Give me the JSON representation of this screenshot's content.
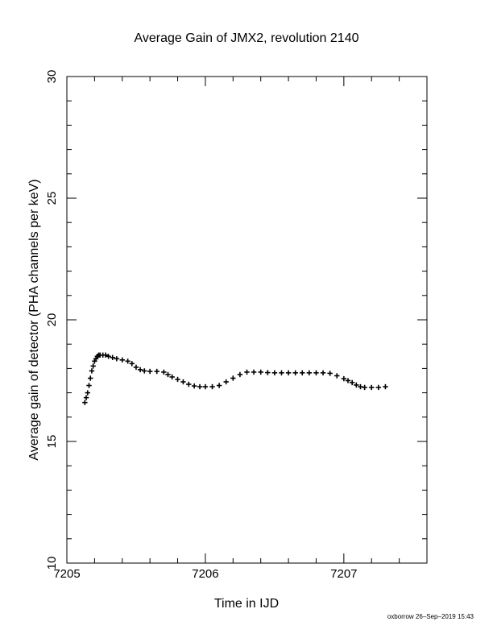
{
  "chart_data": {
    "type": "scatter",
    "title": "Average Gain of JMX2, revolution 2140",
    "xlabel": "Time in IJD",
    "ylabel": "Average gain of detector (PHA channels per keV)",
    "xlim": [
      7205,
      7207.6
    ],
    "ylim": [
      10,
      30
    ],
    "x_ticks": [
      7205,
      7206,
      7207
    ],
    "x_tick_labels": [
      "7205",
      "7206",
      "7207"
    ],
    "y_ticks": [
      10,
      15,
      20,
      25,
      30
    ],
    "y_tick_labels": [
      "10",
      "15",
      "20",
      "25",
      "30"
    ],
    "x_minor_step": 0.2,
    "y_minor_step": 1,
    "marker": "plus",
    "marker_color": "#000000",
    "grid": false,
    "series": [
      {
        "x": [
          7205.13,
          7205.14,
          7205.15,
          7205.16,
          7205.17,
          7205.18,
          7205.19,
          7205.2,
          7205.21,
          7205.22,
          7205.23,
          7205.24,
          7205.26,
          7205.28,
          7205.3,
          7205.33,
          7205.36,
          7205.4,
          7205.44,
          7205.47,
          7205.5,
          7205.53,
          7205.56,
          7205.6,
          7205.65,
          7205.7,
          7205.73,
          7205.76,
          7205.8,
          7205.84,
          7205.88,
          7205.92,
          7205.96,
          7206.0,
          7206.05,
          7206.1,
          7206.15,
          7206.2,
          7206.25,
          7206.3,
          7206.35,
          7206.4,
          7206.45,
          7206.5,
          7206.55,
          7206.6,
          7206.65,
          7206.7,
          7206.75,
          7206.8,
          7206.85,
          7206.9,
          7206.95,
          7207.0,
          7207.03,
          7207.06,
          7207.09,
          7207.12,
          7207.15,
          7207.2,
          7207.25,
          7207.3
        ],
        "y": [
          16.6,
          16.8,
          17.0,
          17.3,
          17.6,
          17.9,
          18.1,
          18.3,
          18.4,
          18.5,
          18.55,
          18.55,
          18.55,
          18.55,
          18.5,
          18.45,
          18.4,
          18.35,
          18.3,
          18.2,
          18.05,
          17.95,
          17.9,
          17.88,
          17.88,
          17.85,
          17.75,
          17.65,
          17.55,
          17.45,
          17.35,
          17.28,
          17.25,
          17.25,
          17.25,
          17.3,
          17.45,
          17.6,
          17.75,
          17.85,
          17.85,
          17.85,
          17.83,
          17.82,
          17.82,
          17.82,
          17.82,
          17.82,
          17.82,
          17.82,
          17.82,
          17.8,
          17.7,
          17.58,
          17.5,
          17.42,
          17.32,
          17.25,
          17.22,
          17.22,
          17.22,
          17.25
        ]
      }
    ]
  },
  "footer": {
    "credit": "oxborrow 26–Sep–2019 15:43"
  }
}
